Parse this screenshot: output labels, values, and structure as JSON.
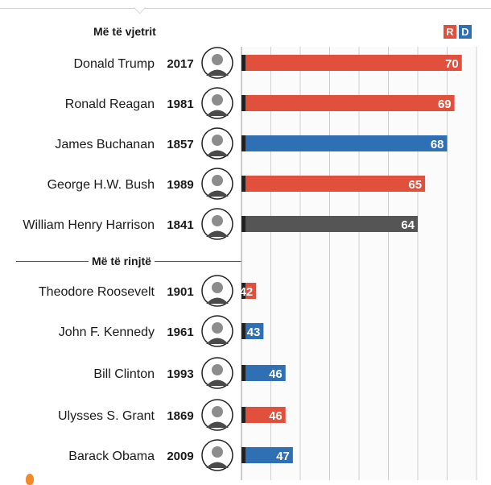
{
  "sections": {
    "oldest_title": "Më të vjetrit",
    "youngest_title": "Më të rinjtë"
  },
  "legend": {
    "items": [
      {
        "label": "R",
        "color": "#e1503c"
      },
      {
        "label": "D",
        "color": "#2f6fb3"
      }
    ]
  },
  "colors": {
    "republican": "#e1503c",
    "democrat": "#2f6fb3",
    "other": "#555555",
    "grid": "#cfcfcf",
    "grid_fill": "#fbfbfb"
  },
  "chart_data": {
    "type": "bar",
    "orientation": "horizontal",
    "xlim": [
      40,
      72
    ],
    "grid": true,
    "groups": [
      {
        "title": "Më të vjetrit",
        "rows": [
          {
            "name": "Donald Trump",
            "year": "2017",
            "value": 70,
            "party": "R",
            "portrait": "donald-trump-portrait"
          },
          {
            "name": "Ronald Reagan",
            "year": "1981",
            "value": 69,
            "party": "R",
            "portrait": "ronald-reagan-portrait"
          },
          {
            "name": "James Buchanan",
            "year": "1857",
            "value": 68,
            "party": "D",
            "portrait": "james-buchanan-portrait"
          },
          {
            "name": "George H.W. Bush",
            "year": "1989",
            "value": 65,
            "party": "R",
            "portrait": "george-hw-bush-portrait"
          },
          {
            "name": "William Henry Harrison",
            "year": "1841",
            "value": 64,
            "party": "other",
            "portrait": "william-henry-harrison-portrait"
          }
        ]
      },
      {
        "title": "Më të rinjtë",
        "rows": [
          {
            "name": "Theodore Roosevelt",
            "year": "1901",
            "value": 42,
            "party": "R",
            "portrait": "theodore-roosevelt-portrait"
          },
          {
            "name": "John F. Kennedy",
            "year": "1961",
            "value": 43,
            "party": "D",
            "portrait": "john-f-kennedy-portrait"
          },
          {
            "name": "Bill Clinton",
            "year": "1993",
            "value": 46,
            "party": "D",
            "portrait": "bill-clinton-portrait"
          },
          {
            "name": "Ulysses S. Grant",
            "year": "1869",
            "value": 46,
            "party": "R",
            "portrait": "ulysses-s-grant-portrait"
          },
          {
            "name": "Barack Obama",
            "year": "2009",
            "value": 47,
            "party": "D",
            "portrait": "barack-obama-portrait"
          }
        ]
      }
    ]
  }
}
